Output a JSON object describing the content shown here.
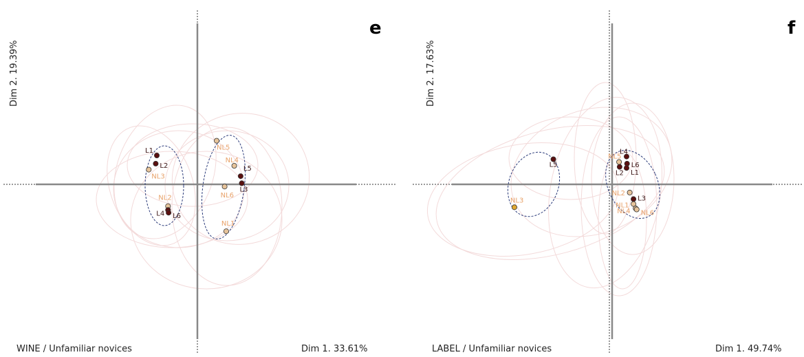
{
  "chart_data": [
    {
      "type": "scatter",
      "panel_letter": "e",
      "caption_part1": "WINE / ",
      "caption_part2": "Unfamiliar novices",
      "xlabel": "Dim 1. 33.61%",
      "ylabel": "Dim 2. 19.39%",
      "points": [
        {
          "label": "L1",
          "x": -0.76,
          "y": 0.53,
          "group": "L"
        },
        {
          "label": "L2",
          "x": -0.78,
          "y": 0.38,
          "group": "L"
        },
        {
          "label": "NL3",
          "x": -0.91,
          "y": 0.27,
          "group": "NL"
        },
        {
          "label": "NL2",
          "x": -0.55,
          "y": -0.4,
          "group": "NL"
        },
        {
          "label": "L4",
          "x": -0.55,
          "y": -0.47,
          "group": "L"
        },
        {
          "label": "L6",
          "x": -0.54,
          "y": -0.52,
          "group": "L"
        },
        {
          "label": "NL5",
          "x": 0.36,
          "y": 0.8,
          "group": "NL"
        },
        {
          "label": "NL4",
          "x": 0.69,
          "y": 0.34,
          "group": "NL"
        },
        {
          "label": "L5",
          "x": 0.81,
          "y": 0.15,
          "group": "L"
        },
        {
          "label": "L3",
          "x": 0.83,
          "y": 0.02,
          "group": "L"
        },
        {
          "label": "NL6",
          "x": 0.51,
          "y": -0.04,
          "group": "NL"
        },
        {
          "label": "NL1",
          "x": 0.54,
          "y": -0.86,
          "group": "NL"
        }
      ],
      "xlim": [
        -3,
        3
      ],
      "ylim": [
        -2.9,
        2.9
      ]
    },
    {
      "type": "scatter",
      "panel_letter": "f",
      "caption_part1": "LABEL / ",
      "caption_part2": "Unfamiliar novices",
      "xlabel": "Dim 1. 49.74%",
      "ylabel": "Dim 2. 17.63%",
      "points": [
        {
          "label": "L5",
          "x": -1.1,
          "y": 0.46,
          "group": "L"
        },
        {
          "label": "NL3",
          "x": -1.83,
          "y": -0.42,
          "group": "NL"
        },
        {
          "label": "L4",
          "x": 0.27,
          "y": 0.51,
          "group": "L"
        },
        {
          "label": "NL5",
          "x": 0.13,
          "y": 0.41,
          "group": "NL"
        },
        {
          "label": "L6",
          "x": 0.28,
          "y": 0.38,
          "group": "L"
        },
        {
          "label": "L2",
          "x": 0.14,
          "y": 0.32,
          "group": "L"
        },
        {
          "label": "L1",
          "x": 0.27,
          "y": 0.3,
          "group": "L"
        },
        {
          "label": "NL2",
          "x": 0.33,
          "y": -0.15,
          "group": "NL"
        },
        {
          "label": "L3",
          "x": 0.4,
          "y": -0.27,
          "group": "L"
        },
        {
          "label": "NL1",
          "x": 0.4,
          "y": -0.36,
          "group": "NL"
        },
        {
          "label": "NL4",
          "x": 0.44,
          "y": -0.44,
          "group": "NL"
        },
        {
          "label": "NL6",
          "x": 0.46,
          "y": -0.46,
          "group": "NL"
        }
      ],
      "xlim": [
        -3,
        3
      ],
      "ylim": [
        -2.9,
        2.9
      ]
    }
  ],
  "colors": {
    "L": "#5a1010",
    "NL": "#e6c39a",
    "NL3_highlight": "#e0a830",
    "axis": "#888888",
    "ellipse_faint": "#f2d8d8",
    "ellipse_cluster": "#2b3b7a"
  }
}
